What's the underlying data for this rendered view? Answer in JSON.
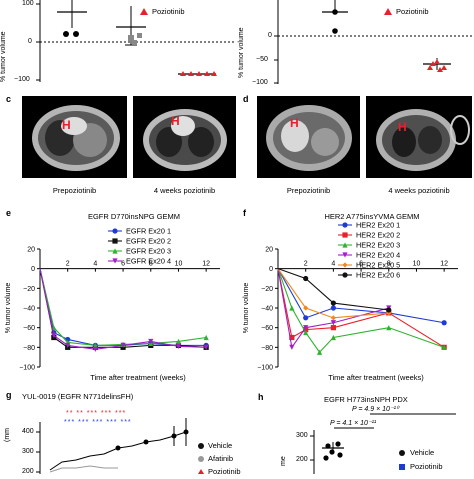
{
  "panel_letters": {
    "c": "c",
    "d": "d",
    "e": "e",
    "f": "f",
    "g": "g",
    "h": "h"
  },
  "top_left": {
    "ylabel": "% tumor volume",
    "yticks": [
      "100",
      "0",
      "−100"
    ],
    "legend": "Poziotinib",
    "legend_color": "#e8202a"
  },
  "top_right": {
    "ylabel": "% tumor volume",
    "yticks": [
      "0",
      "−50",
      "−100"
    ],
    "legend": "Poziotinib",
    "legend_color": "#e8202a"
  },
  "mri_c": {
    "left_label": "Prepoziotinib",
    "right_label": "4 weeks poziotinib",
    "marker": "H"
  },
  "mri_d": {
    "left_label": "Prepoziotinib",
    "right_label": "4 weeks poziotinib",
    "marker": "H"
  },
  "chart_data": [
    {
      "type": "line",
      "title": "EGFR D770insNPG GEMM",
      "xlabel": "Time after treatment (weeks)",
      "ylabel": "% tumor volume",
      "x_ticks": [
        "2",
        "4",
        "6",
        "8",
        "10",
        "12"
      ],
      "y_ticks": [
        "20",
        "0",
        "−20",
        "−40",
        "−60",
        "−80",
        "−100"
      ],
      "ylim": [
        -100,
        20
      ],
      "xlim": [
        0,
        13
      ],
      "series": [
        {
          "name": "EGFR Ex20 1",
          "color": "#1f3bd6",
          "marker": "circle",
          "x": [
            0,
            1,
            2,
            4,
            6,
            8,
            10,
            12
          ],
          "y": [
            0,
            -65,
            -72,
            -78,
            -78,
            -76,
            -78,
            -78
          ]
        },
        {
          "name": "EGFR Ex20 2",
          "color": "#111111",
          "marker": "square",
          "x": [
            0,
            1,
            2,
            4,
            6,
            8,
            10,
            12
          ],
          "y": [
            0,
            -70,
            -80,
            -80,
            -80,
            -78,
            -78,
            -80
          ]
        },
        {
          "name": "EGFR Ex20 3",
          "color": "#2db32d",
          "marker": "triangle",
          "x": [
            0,
            1,
            2,
            4,
            6,
            8,
            10,
            12
          ],
          "y": [
            0,
            -60,
            -75,
            -78,
            -77,
            -76,
            -74,
            -70
          ]
        },
        {
          "name": "EGFR Ex20 4",
          "color": "#a020c8",
          "marker": "triangle-down",
          "x": [
            0,
            1,
            2,
            4,
            6,
            8,
            10,
            12
          ],
          "y": [
            0,
            -68,
            -78,
            -82,
            -78,
            -74,
            -79,
            -80
          ]
        }
      ]
    },
    {
      "type": "line",
      "title": "HER2 A775insYVMA GEMM",
      "xlabel": "Time after treatment (weeks)",
      "ylabel": "% tumor volume",
      "x_ticks": [
        "2",
        "4",
        "6",
        "8",
        "10",
        "12"
      ],
      "y_ticks": [
        "20",
        "0",
        "−20",
        "−40",
        "−60",
        "−80",
        "−100"
      ],
      "ylim": [
        -100,
        20
      ],
      "xlim": [
        0,
        13
      ],
      "series": [
        {
          "name": "HER2 Ex20 1",
          "color": "#1f3bd6",
          "marker": "circle",
          "x": [
            0,
            2,
            4,
            8,
            12
          ],
          "y": [
            0,
            -50,
            -40,
            -45,
            -55
          ]
        },
        {
          "name": "HER2 Ex20 2",
          "color": "#e8202a",
          "marker": "square",
          "x": [
            0,
            1,
            2,
            4,
            8,
            12
          ],
          "y": [
            0,
            -70,
            -62,
            -60,
            -45,
            -80
          ]
        },
        {
          "name": "HER2 Ex20 3",
          "color": "#2db32d",
          "marker": "triangle",
          "x": [
            0,
            1,
            2,
            3,
            4,
            8,
            12
          ],
          "y": [
            0,
            -40,
            -65,
            -85,
            -70,
            -60,
            -80
          ]
        },
        {
          "name": "HER2 Ex20 4",
          "color": "#a020c8",
          "marker": "triangle-down",
          "x": [
            0,
            1,
            2,
            4,
            8
          ],
          "y": [
            0,
            -80,
            -60,
            -55,
            -40
          ]
        },
        {
          "name": "HER2 Ex20 5",
          "color": "#f08a1c",
          "marker": "diamond",
          "x": [
            0,
            2,
            4,
            8
          ],
          "y": [
            0,
            -40,
            -50,
            -45
          ]
        },
        {
          "name": "HER2 Ex20 6",
          "color": "#111111",
          "marker": "circle",
          "x": [
            0,
            2,
            4,
            8
          ],
          "y": [
            0,
            -10,
            -35,
            -42
          ]
        }
      ]
    }
  ],
  "panel_g": {
    "title": "YUL-0019 (EGFR N771delinsFH)",
    "ylabel_unit": "(mm",
    "y_ticks": [
      "400",
      "300",
      "200"
    ],
    "legend": [
      {
        "label": "Vehicle",
        "color": "#111111"
      },
      {
        "label": "Afatinib",
        "color": "#999999"
      },
      {
        "label": "Poziotinib",
        "color": "#e8202a"
      }
    ],
    "stars_red": "** ** *** *** ***",
    "stars_blue": "*** *** *** *** ***"
  },
  "panel_h": {
    "title": "EGFR H773insNPH PDX",
    "p_top": "P = 4.9 × 10⁻¹⁰",
    "p_bottom": "P = 4.1 × 10⁻¹¹",
    "y_ticks": [
      "300",
      "200"
    ],
    "ylabel_frag": "me",
    "legend": [
      {
        "label": "Vehicle",
        "color": "#111111"
      },
      {
        "label": "Poziotinib",
        "color": "#1f3bd6"
      }
    ]
  }
}
